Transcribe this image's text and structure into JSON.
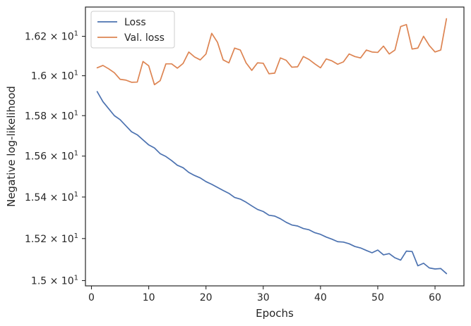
{
  "chart_data": {
    "type": "line",
    "xlabel": "Epochs",
    "ylabel": "Negative log-likelihood",
    "xlim": [
      -1.05,
      65.05
    ],
    "ylim": [
      14.975,
      16.35
    ],
    "yscale": "log",
    "grid": false,
    "legend_position": "top-left",
    "x_ticks": [
      0,
      10,
      20,
      30,
      40,
      50,
      60
    ],
    "x_tick_labels": [
      "0",
      "10",
      "20",
      "30",
      "40",
      "50",
      "60"
    ],
    "y_ticks": [
      15.0,
      15.2,
      15.4,
      15.6,
      15.8,
      16.0,
      16.2
    ],
    "y_tick_mantissas": [
      "1.5",
      "1.52",
      "1.54",
      "1.56",
      "1.58",
      "1.6",
      "1.62"
    ],
    "y_tick_base": "× 10",
    "y_tick_exponent": "1",
    "series": [
      {
        "name": "Loss",
        "color": "#4c72b0",
        "x": [
          1,
          2,
          3,
          4,
          5,
          6,
          7,
          8,
          9,
          10,
          11,
          12,
          13,
          14,
          15,
          16,
          17,
          18,
          19,
          20,
          21,
          22,
          23,
          24,
          25,
          26,
          27,
          28,
          29,
          30,
          31,
          32,
          33,
          34,
          35,
          36,
          37,
          38,
          39,
          40,
          41,
          42,
          43,
          44,
          45,
          46,
          47,
          48,
          49,
          50,
          51,
          52,
          53,
          54,
          55,
          56,
          57,
          58,
          59,
          60,
          61,
          62
        ],
        "y": [
          15.92,
          15.87,
          15.835,
          15.8,
          15.78,
          15.75,
          15.72,
          15.705,
          15.68,
          15.655,
          15.64,
          15.612,
          15.598,
          15.578,
          15.555,
          15.543,
          15.52,
          15.505,
          15.493,
          15.475,
          15.462,
          15.447,
          15.432,
          15.418,
          15.398,
          15.39,
          15.375,
          15.357,
          15.34,
          15.33,
          15.312,
          15.308,
          15.295,
          15.278,
          15.265,
          15.26,
          15.248,
          15.242,
          15.228,
          15.22,
          15.207,
          15.197,
          15.185,
          15.183,
          15.175,
          15.162,
          15.155,
          15.143,
          15.132,
          15.145,
          15.122,
          15.128,
          15.108,
          15.097,
          15.14,
          15.138,
          15.07,
          15.082,
          15.06,
          15.055,
          15.057,
          15.033
        ]
      },
      {
        "name": "Val. loss",
        "color": "#dd8452",
        "x": [
          1,
          2,
          3,
          4,
          5,
          6,
          7,
          8,
          9,
          10,
          11,
          12,
          13,
          14,
          15,
          16,
          17,
          18,
          19,
          20,
          21,
          22,
          23,
          24,
          25,
          26,
          27,
          28,
          29,
          30,
          31,
          32,
          33,
          34,
          35,
          36,
          37,
          38,
          39,
          40,
          41,
          42,
          43,
          44,
          45,
          46,
          47,
          48,
          49,
          50,
          51,
          52,
          53,
          54,
          55,
          56,
          57,
          58,
          59,
          60,
          61,
          62
        ],
        "y": [
          16.04,
          16.052,
          16.035,
          16.015,
          15.982,
          15.978,
          15.967,
          15.968,
          16.072,
          16.05,
          15.955,
          15.975,
          16.06,
          16.06,
          16.038,
          16.062,
          16.12,
          16.095,
          16.08,
          16.11,
          16.215,
          16.17,
          16.08,
          16.065,
          16.14,
          16.13,
          16.065,
          16.027,
          16.065,
          16.063,
          16.01,
          16.013,
          16.09,
          16.078,
          16.043,
          16.045,
          16.097,
          16.082,
          16.06,
          16.04,
          16.085,
          16.075,
          16.058,
          16.07,
          16.11,
          16.097,
          16.09,
          16.13,
          16.12,
          16.118,
          16.15,
          16.11,
          16.13,
          16.25,
          16.26,
          16.135,
          16.14,
          16.2,
          16.153,
          16.12,
          16.13,
          16.29
        ]
      }
    ]
  }
}
